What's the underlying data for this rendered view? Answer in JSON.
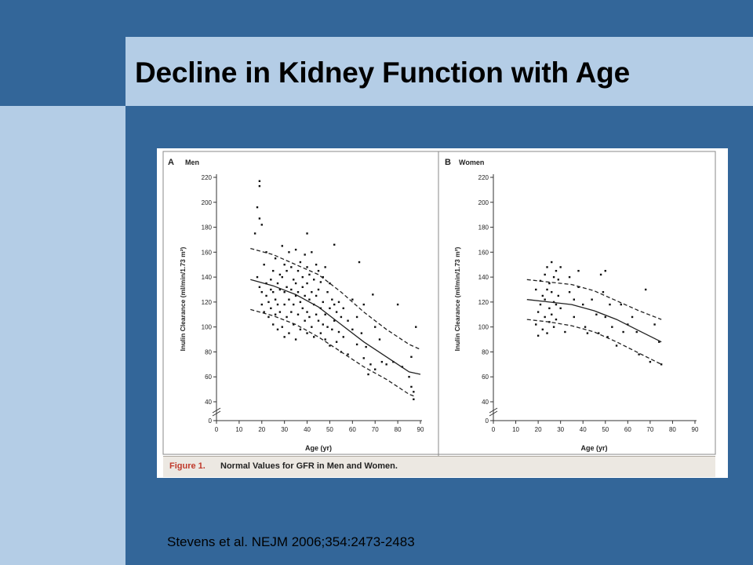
{
  "slide": {
    "title": "Decline in Kidney Function with Age",
    "citation": "Stevens et al. NEJM 2006;354:2473-2483"
  },
  "figure": {
    "caption_label": "Figure 1.",
    "caption_text": "Normal Values for GFR in Men and Women."
  },
  "colors": {
    "background": "#336699",
    "band": "#b4cde6",
    "caption_label": "#c0392b"
  },
  "chart_data": [
    {
      "type": "scatter",
      "panel_letter": "A",
      "title": "Men",
      "xlabel": "Age (yr)",
      "ylabel": "Inulin Clearance (ml/min/1.73 m²)",
      "xlim": [
        0,
        90
      ],
      "ylim": [
        0,
        220
      ],
      "axis_break": true,
      "x_ticks": [
        0,
        10,
        20,
        30,
        40,
        50,
        60,
        70,
        80,
        90
      ],
      "y_ticks": [
        0,
        40,
        60,
        80,
        100,
        120,
        140,
        160,
        180,
        200,
        220
      ],
      "series": [
        {
          "kind": "points",
          "points": [
            [
              17,
              175
            ],
            [
              18,
              196
            ],
            [
              19,
              213
            ],
            [
              19,
              217
            ],
            [
              19,
              187
            ],
            [
              20,
              182
            ],
            [
              18,
              140
            ],
            [
              19,
              132
            ],
            [
              20,
              128
            ],
            [
              20,
              118
            ],
            [
              21,
              112
            ],
            [
              21,
              150
            ],
            [
              22,
              160
            ],
            [
              22,
              135
            ],
            [
              22,
              125
            ],
            [
              23,
              120
            ],
            [
              23,
              108
            ],
            [
              24,
              138
            ],
            [
              24,
              130
            ],
            [
              24,
              115
            ],
            [
              25,
              145
            ],
            [
              25,
              128
            ],
            [
              25,
              102
            ],
            [
              26,
              155
            ],
            [
              26,
              122
            ],
            [
              26,
              110
            ],
            [
              27,
              135
            ],
            [
              27,
              118
            ],
            [
              27,
              98
            ],
            [
              28,
              142
            ],
            [
              28,
              130
            ],
            [
              28,
              112
            ],
            [
              29,
              165
            ],
            [
              29,
              140
            ],
            [
              29,
              100
            ],
            [
              30,
              150
            ],
            [
              30,
              128
            ],
            [
              30,
              118
            ],
            [
              30,
              92
            ],
            [
              31,
              145
            ],
            [
              31,
              132
            ],
            [
              31,
              108
            ],
            [
              32,
              160
            ],
            [
              32,
              122
            ],
            [
              32,
              95
            ],
            [
              33,
              148
            ],
            [
              33,
              130
            ],
            [
              33,
              112
            ],
            [
              34,
              138
            ],
            [
              34,
              118
            ],
            [
              34,
              102
            ],
            [
              35,
              162
            ],
            [
              35,
              135
            ],
            [
              35,
              125
            ],
            [
              35,
              90
            ],
            [
              36,
              145
            ],
            [
              36,
              128
            ],
            [
              36,
              110
            ],
            [
              37,
              152
            ],
            [
              37,
              120
            ],
            [
              37,
              98
            ],
            [
              38,
              140
            ],
            [
              38,
              132
            ],
            [
              38,
              115
            ],
            [
              39,
              158
            ],
            [
              39,
              125
            ],
            [
              39,
              105
            ],
            [
              40,
              175
            ],
            [
              40,
              148
            ],
            [
              40,
              135
            ],
            [
              40,
              112
            ],
            [
              40,
              95
            ],
            [
              41,
              142
            ],
            [
              41,
              122
            ],
            [
              41,
              108
            ],
            [
              42,
              160
            ],
            [
              42,
              128
            ],
            [
              42,
              100
            ],
            [
              43,
              138
            ],
            [
              43,
              118
            ],
            [
              43,
              92
            ],
            [
              44,
              150
            ],
            [
              44,
              125
            ],
            [
              44,
              110
            ],
            [
              45,
              145
            ],
            [
              45,
              130
            ],
            [
              45,
              105
            ],
            [
              46,
              136
            ],
            [
              46,
              115
            ],
            [
              46,
              95
            ],
            [
              47,
              140
            ],
            [
              47,
              120
            ],
            [
              47,
              102
            ],
            [
              48,
              148
            ],
            [
              48,
              110
            ],
            [
              48,
              90
            ],
            [
              49,
              128
            ],
            [
              49,
              100
            ],
            [
              50,
              135
            ],
            [
              50,
              115
            ],
            [
              50,
              85
            ],
            [
              51,
              122
            ],
            [
              51,
              98
            ],
            [
              52,
              166
            ],
            [
              52,
              118
            ],
            [
              52,
              105
            ],
            [
              53,
              112
            ],
            [
              53,
              88
            ],
            [
              54,
              120
            ],
            [
              54,
              96
            ],
            [
              55,
              108
            ],
            [
              55,
              80
            ],
            [
              56,
              115
            ],
            [
              56,
              92
            ],
            [
              58,
              105
            ],
            [
              58,
              78
            ],
            [
              60,
              122
            ],
            [
              60,
              98
            ],
            [
              62,
              108
            ],
            [
              62,
              86
            ],
            [
              63,
              152
            ],
            [
              64,
              95
            ],
            [
              65,
              118
            ],
            [
              65,
              75
            ],
            [
              66,
              84
            ],
            [
              67,
              62
            ],
            [
              68,
              70
            ],
            [
              69,
              126
            ],
            [
              70,
              100
            ],
            [
              70,
              66
            ],
            [
              72,
              90
            ],
            [
              73,
              72
            ],
            [
              75,
              70
            ],
            [
              78,
              72
            ],
            [
              80,
              118
            ],
            [
              82,
              68
            ],
            [
              85,
              60
            ],
            [
              86,
              52
            ],
            [
              87,
              48
            ],
            [
              87,
              42
            ],
            [
              88,
              100
            ],
            [
              86,
              76
            ]
          ]
        },
        {
          "kind": "fit",
          "style": "solid",
          "points": [
            [
              15,
              138
            ],
            [
              25,
              133
            ],
            [
              35,
              126
            ],
            [
              45,
              116
            ],
            [
              55,
              102
            ],
            [
              65,
              88
            ],
            [
              75,
              76
            ],
            [
              85,
              64
            ],
            [
              90,
              62
            ]
          ]
        },
        {
          "kind": "fit",
          "style": "dashed",
          "points": [
            [
              15,
              163
            ],
            [
              25,
              158
            ],
            [
              35,
              150
            ],
            [
              45,
              142
            ],
            [
              55,
              128
            ],
            [
              65,
              112
            ],
            [
              75,
              98
            ],
            [
              85,
              86
            ],
            [
              90,
              82
            ]
          ]
        },
        {
          "kind": "fit",
          "style": "dashed",
          "points": [
            [
              15,
              114
            ],
            [
              25,
              109
            ],
            [
              35,
              102
            ],
            [
              45,
              92
            ],
            [
              55,
              80
            ],
            [
              65,
              68
            ],
            [
              75,
              58
            ],
            [
              85,
              46
            ],
            [
              88,
              44
            ]
          ]
        }
      ]
    },
    {
      "type": "scatter",
      "panel_letter": "B",
      "title": "Women",
      "xlabel": "Age (yr)",
      "ylabel": "Inulin Clearance (ml/min/1.73 m²)",
      "xlim": [
        0,
        90
      ],
      "ylim": [
        0,
        220
      ],
      "axis_break": true,
      "x_ticks": [
        0,
        10,
        20,
        30,
        40,
        50,
        60,
        70,
        80,
        90
      ],
      "y_ticks": [
        0,
        40,
        60,
        80,
        100,
        120,
        140,
        160,
        180,
        200,
        220
      ],
      "series": [
        {
          "kind": "points",
          "points": [
            [
              19,
              130
            ],
            [
              19,
              102
            ],
            [
              20,
              112
            ],
            [
              20,
              93
            ],
            [
              21,
              137
            ],
            [
              21,
              118
            ],
            [
              22,
              125
            ],
            [
              22,
              98
            ],
            [
              23,
              142
            ],
            [
              23,
              122
            ],
            [
              23,
              108
            ],
            [
              24,
              148
            ],
            [
              24,
              130
            ],
            [
              24,
              95
            ],
            [
              25,
              135
            ],
            [
              25,
              115
            ],
            [
              25,
              104
            ],
            [
              26,
              152
            ],
            [
              26,
              128
            ],
            [
              26,
              110
            ],
            [
              27,
              140
            ],
            [
              27,
              120
            ],
            [
              27,
              100
            ],
            [
              28,
              145
            ],
            [
              28,
              118
            ],
            [
              28,
              106
            ],
            [
              29,
              138
            ],
            [
              29,
              125
            ],
            [
              30,
              148
            ],
            [
              30,
              115
            ],
            [
              32,
              96
            ],
            [
              34,
              140
            ],
            [
              34,
              128
            ],
            [
              36,
              122
            ],
            [
              36,
              108
            ],
            [
              38,
              145
            ],
            [
              38,
              132
            ],
            [
              40,
              118
            ],
            [
              41,
              100
            ],
            [
              42,
              95
            ],
            [
              44,
              122
            ],
            [
              46,
              110
            ],
            [
              47,
              95
            ],
            [
              48,
              142
            ],
            [
              49,
              128
            ],
            [
              50,
              145
            ],
            [
              50,
              108
            ],
            [
              51,
              92
            ],
            [
              52,
              118
            ],
            [
              53,
              100
            ],
            [
              55,
              85
            ],
            [
              57,
              118
            ],
            [
              58,
              96
            ],
            [
              60,
              102
            ],
            [
              62,
              108
            ],
            [
              64,
              96
            ],
            [
              65,
              78
            ],
            [
              68,
              130
            ],
            [
              70,
              72
            ],
            [
              72,
              102
            ],
            [
              74,
              88
            ],
            [
              75,
              70
            ]
          ]
        },
        {
          "kind": "fit",
          "style": "solid",
          "points": [
            [
              15,
              122
            ],
            [
              25,
              120
            ],
            [
              35,
              118
            ],
            [
              45,
              113
            ],
            [
              55,
              106
            ],
            [
              65,
              97
            ],
            [
              75,
              88
            ]
          ]
        },
        {
          "kind": "fit",
          "style": "dashed",
          "points": [
            [
              15,
              138
            ],
            [
              25,
              136
            ],
            [
              35,
              134
            ],
            [
              45,
              129
            ],
            [
              55,
              121
            ],
            [
              65,
              113
            ],
            [
              75,
              106
            ]
          ]
        },
        {
          "kind": "fit",
          "style": "dashed",
          "points": [
            [
              15,
              106
            ],
            [
              25,
              104
            ],
            [
              35,
              101
            ],
            [
              45,
              96
            ],
            [
              55,
              88
            ],
            [
              65,
              79
            ],
            [
              75,
              70
            ]
          ]
        }
      ]
    }
  ]
}
